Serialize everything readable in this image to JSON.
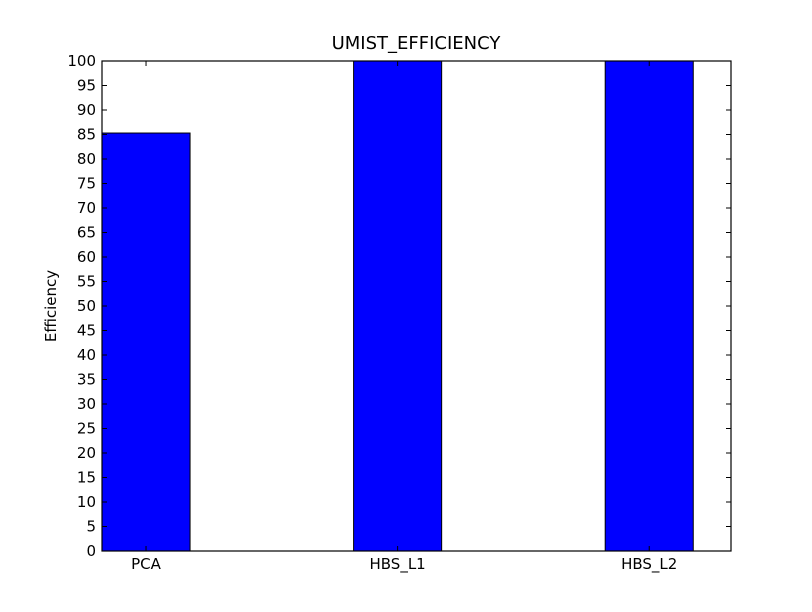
{
  "chart_data": {
    "type": "bar",
    "title": "UMIST_EFFICIENCY",
    "xlabel": "",
    "ylabel": "Efficiency",
    "categories": [
      "PCA",
      "HBS_L1",
      "HBS_L2"
    ],
    "values": [
      85.3,
      100,
      100
    ],
    "ylim": [
      0,
      100
    ],
    "yticks": [
      0,
      5,
      10,
      15,
      20,
      25,
      30,
      35,
      40,
      45,
      50,
      55,
      60,
      65,
      70,
      75,
      80,
      85,
      90,
      95,
      100
    ],
    "bar_color": "#0000ff",
    "grid": false
  }
}
